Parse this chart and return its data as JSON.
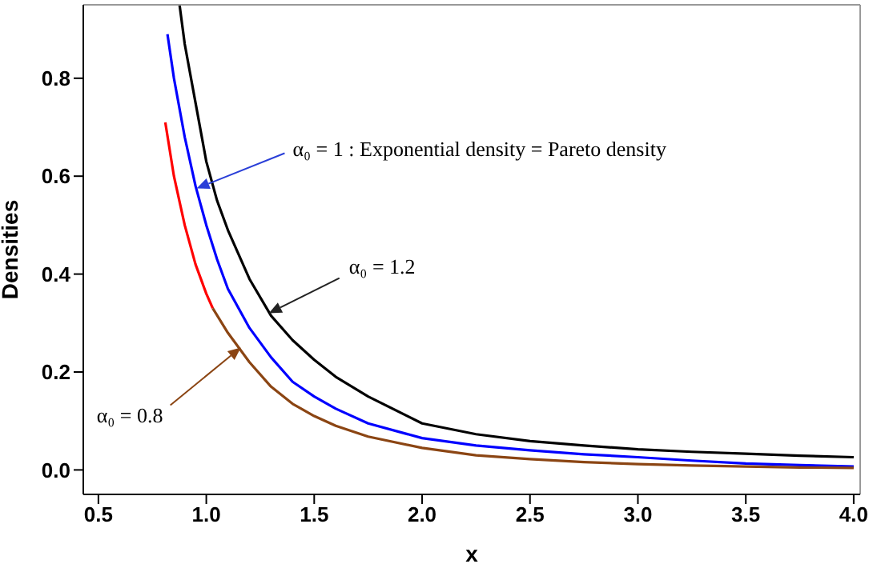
{
  "chart_data": {
    "type": "line",
    "xlabel": "x",
    "ylabel": "Densities",
    "xlim": [
      0.43,
      4.03
    ],
    "xticks": [
      0.5,
      {
        "value": 1,
        "label": "1.0"
      },
      1.5,
      {
        "value": 2,
        "label": "2.0"
      },
      2.5,
      {
        "value": 3,
        "label": "3.0"
      },
      3.5,
      {
        "value": 4,
        "label": "4.0"
      }
    ],
    "ylim": [
      -0.05,
      0.95
    ],
    "yticks": [
      {
        "value": 0,
        "label": "0.0"
      },
      0.2,
      0.4,
      0.6,
      0.8
    ],
    "marker": "none",
    "line_style": "solid",
    "series": [
      {
        "color": "#000000",
        "x": [
          0.876,
          0.9,
          0.95,
          1.0,
          1.05,
          1.1,
          1.2,
          1.3,
          1.4,
          1.5,
          1.6,
          1.75,
          2.0,
          2.25,
          2.5,
          2.75,
          3.0,
          3.25,
          3.5,
          3.75,
          4.0
        ],
        "values": [
          0.95,
          0.87,
          0.75,
          0.63,
          0.55,
          0.49,
          0.39,
          0.315,
          0.265,
          0.225,
          0.19,
          0.15,
          0.095,
          0.073,
          0.059,
          0.05,
          0.042,
          0.037,
          0.033,
          0.029,
          0.026
        ]
      },
      {
        "color": "#0000ff",
        "x": [
          0.82,
          0.85,
          0.9,
          0.95,
          1.0,
          1.05,
          1.1,
          1.2,
          1.3,
          1.4,
          1.5,
          1.6,
          1.75,
          2.0,
          2.25,
          2.5,
          2.75,
          3.0,
          3.25,
          3.5,
          3.75,
          4.0
        ],
        "values": [
          0.89,
          0.8,
          0.68,
          0.58,
          0.5,
          0.43,
          0.37,
          0.29,
          0.23,
          0.18,
          0.15,
          0.125,
          0.095,
          0.065,
          0.05,
          0.04,
          0.032,
          0.026,
          0.019,
          0.013,
          0.01,
          0.007
        ]
      },
      {
        "color": "#ff0000",
        "x": [
          0.81,
          0.85,
          0.9,
          0.95,
          1.0,
          1.03
        ],
        "values": [
          0.71,
          0.6,
          0.5,
          0.42,
          0.36,
          0.33
        ]
      },
      {
        "color": "#8b4513",
        "x": [
          1.03,
          1.1,
          1.2,
          1.3,
          1.4,
          1.5,
          1.6,
          1.75,
          2.0,
          2.25,
          2.5,
          2.75,
          3.0,
          3.25,
          3.5,
          3.75,
          4.0
        ],
        "values": [
          0.33,
          0.28,
          0.22,
          0.17,
          0.135,
          0.11,
          0.09,
          0.068,
          0.045,
          0.03,
          0.022,
          0.016,
          0.012,
          0.009,
          0.007,
          0.005,
          0.004
        ]
      }
    ],
    "annotations": [
      {
        "text": "α₀ = 1 : Exponential density = Pareto density",
        "x": 0.955,
        "y": 0.575
      },
      {
        "text": "α₀ = 1.2",
        "x": 1.29,
        "y": 0.32
      },
      {
        "text": "α₀ = 0.8",
        "x": 1.16,
        "y": 0.25
      }
    ]
  }
}
